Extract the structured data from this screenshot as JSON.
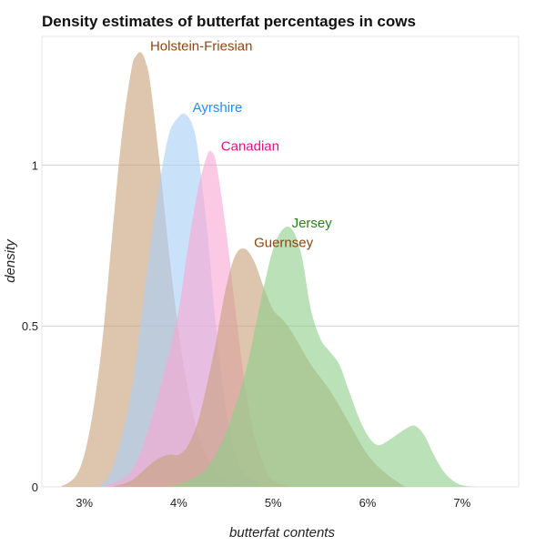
{
  "chart_data": {
    "type": "area",
    "title": "Density estimates of butterfat percentages in cows",
    "xlabel": "butterfat contents",
    "ylabel": "density",
    "xlim": [
      2.55,
      7.6
    ],
    "ylim": [
      0,
      1.4
    ],
    "x_ticks": [
      3,
      4,
      5,
      6,
      7
    ],
    "x_tick_labels": [
      "3%",
      "4%",
      "5%",
      "6%",
      "7%"
    ],
    "y_ticks": [
      0,
      0.5,
      1
    ],
    "y_tick_labels": [
      "0",
      "0.5",
      "1"
    ],
    "grid": "horizontal",
    "legend": "direct labels",
    "series": [
      {
        "name": "Holstein-Friesian",
        "color": "#c8a27c",
        "label_color": "#8b4513",
        "x": [
          2.75,
          2.9,
          3.0,
          3.1,
          3.2,
          3.3,
          3.4,
          3.5,
          3.55,
          3.6,
          3.65,
          3.7,
          3.8,
          3.9,
          4.0,
          4.1,
          4.2,
          4.3,
          4.4,
          4.5,
          4.6,
          4.7
        ],
        "y": [
          0.0,
          0.03,
          0.1,
          0.25,
          0.48,
          0.8,
          1.1,
          1.3,
          1.34,
          1.35,
          1.32,
          1.25,
          1.0,
          0.72,
          0.48,
          0.3,
          0.17,
          0.09,
          0.04,
          0.02,
          0.005,
          0.0
        ]
      },
      {
        "name": "Ayrshire",
        "color": "#a9cff7",
        "label_color": "#1e90ff",
        "x": [
          3.15,
          3.3,
          3.5,
          3.7,
          3.8,
          3.9,
          4.0,
          4.05,
          4.1,
          4.15,
          4.2,
          4.3,
          4.4,
          4.5,
          4.6,
          4.7,
          4.85,
          5.0
        ],
        "y": [
          0.0,
          0.06,
          0.3,
          0.75,
          0.95,
          1.1,
          1.15,
          1.16,
          1.15,
          1.12,
          1.05,
          0.8,
          0.48,
          0.24,
          0.1,
          0.04,
          0.01,
          0.0
        ]
      },
      {
        "name": "Canadian",
        "color": "#f9a8d4",
        "label_color": "#e0128c",
        "x": [
          3.2,
          3.5,
          3.7,
          3.9,
          4.0,
          4.1,
          4.2,
          4.3,
          4.35,
          4.4,
          4.5,
          4.6,
          4.7,
          4.8,
          4.9,
          5.0,
          5.2
        ],
        "y": [
          0.0,
          0.05,
          0.2,
          0.42,
          0.55,
          0.75,
          0.92,
          1.03,
          1.04,
          1.0,
          0.8,
          0.55,
          0.32,
          0.16,
          0.07,
          0.02,
          0.0
        ]
      },
      {
        "name": "Guernsey",
        "color": "#c8a27c",
        "label_color": "#8b4513",
        "x": [
          3.3,
          3.5,
          3.7,
          3.8,
          3.9,
          4.0,
          4.1,
          4.2,
          4.3,
          4.4,
          4.5,
          4.6,
          4.7,
          4.8,
          4.9,
          5.0,
          5.1,
          5.2,
          5.4,
          5.6,
          5.8,
          6.0,
          6.2,
          6.4
        ],
        "y": [
          0.0,
          0.02,
          0.07,
          0.09,
          0.1,
          0.1,
          0.13,
          0.2,
          0.32,
          0.46,
          0.62,
          0.72,
          0.74,
          0.7,
          0.62,
          0.55,
          0.52,
          0.48,
          0.38,
          0.3,
          0.2,
          0.1,
          0.04,
          0.0
        ]
      },
      {
        "name": "Jersey",
        "color": "#8fcf8a",
        "label_color": "#2e7d1b",
        "x": [
          3.9,
          4.1,
          4.3,
          4.5,
          4.7,
          4.8,
          4.9,
          5.0,
          5.1,
          5.2,
          5.3,
          5.4,
          5.5,
          5.6,
          5.7,
          5.8,
          5.9,
          6.0,
          6.1,
          6.2,
          6.3,
          6.4,
          6.5,
          6.6,
          6.7,
          6.8,
          6.9,
          7.0,
          7.15
        ],
        "y": [
          0.0,
          0.02,
          0.06,
          0.17,
          0.35,
          0.48,
          0.62,
          0.74,
          0.8,
          0.8,
          0.72,
          0.55,
          0.46,
          0.42,
          0.38,
          0.3,
          0.22,
          0.16,
          0.13,
          0.14,
          0.16,
          0.18,
          0.19,
          0.16,
          0.1,
          0.05,
          0.02,
          0.005,
          0.0
        ]
      }
    ],
    "annotations": [
      {
        "text": "Holstein-Friesian",
        "series": "Holstein-Friesian"
      },
      {
        "text": "Ayrshire",
        "series": "Ayrshire"
      },
      {
        "text": "Canadian",
        "series": "Canadian"
      },
      {
        "text": "Guernsey",
        "series": "Guernsey"
      },
      {
        "text": "Jersey",
        "series": "Jersey"
      }
    ]
  }
}
